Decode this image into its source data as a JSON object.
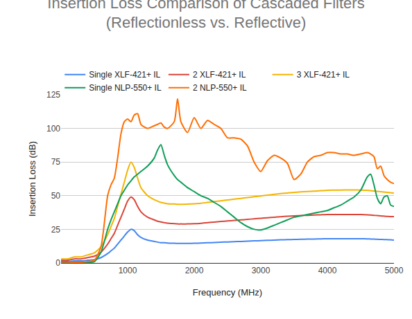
{
  "chart_data": {
    "type": "line",
    "title": "Insertion Loss Comparison of Cascaded Filters\n(Reflectionless vs. Reflective)",
    "x_label": "Frequency (MHz)",
    "y_label": "Insertion Loss (dB)",
    "x": [
      0,
      100,
      200,
      300,
      400,
      500,
      600,
      700,
      750,
      800,
      850,
      900,
      950,
      1000,
      1050,
      1100,
      1150,
      1200,
      1300,
      1400,
      1450,
      1500,
      1550,
      1600,
      1700,
      1750,
      1800,
      1900,
      2000,
      2100,
      2200,
      2300,
      2400,
      2500,
      2600,
      2700,
      2800,
      2900,
      3000,
      3100,
      3200,
      3300,
      3400,
      3500,
      3600,
      3700,
      3800,
      3900,
      4000,
      4100,
      4200,
      4300,
      4400,
      4500,
      4600,
      4650,
      4700,
      4750,
      4800,
      4850,
      4900,
      4950,
      5000
    ],
    "series": [
      {
        "name": "Single XLF-421+ IL",
        "color": "#4285F4",
        "values": [
          1,
          1,
          1.5,
          1.5,
          2,
          2.5,
          4,
          7,
          9,
          11,
          14,
          17,
          20,
          23,
          25,
          24,
          21,
          19,
          17,
          16,
          15.5,
          15,
          15,
          14.8,
          14.6,
          14.5,
          14.5,
          14.5,
          14.6,
          14.8,
          15,
          15.2,
          15.4,
          15.6,
          15.8,
          16,
          16.2,
          16.4,
          16.6,
          16.8,
          17,
          17.2,
          17.3,
          17.5,
          17.6,
          17.7,
          17.8,
          17.9,
          18,
          18,
          18,
          18,
          18,
          18,
          17.9,
          17.8,
          17.7,
          17.6,
          17.5,
          17.4,
          17.3,
          17.2,
          17
        ]
      },
      {
        "name": "2 XLF-421+ IL",
        "color": "#DB4437",
        "values": [
          2,
          2,
          3,
          3,
          4,
          5,
          8,
          14,
          18,
          22,
          28,
          34,
          40,
          46,
          49,
          47,
          42,
          38,
          34,
          32,
          31,
          30.5,
          30,
          29.6,
          29.2,
          29,
          29,
          29,
          29.2,
          29.5,
          30,
          30.4,
          30.8,
          31.2,
          31.6,
          32,
          32.4,
          32.8,
          33.2,
          33.6,
          34,
          34.4,
          34.7,
          35,
          35.2,
          35.4,
          35.6,
          35.8,
          36,
          36,
          36,
          36,
          36,
          36,
          35.8,
          35.6,
          35.4,
          35.2,
          35,
          34.8,
          34.6,
          34.5,
          34.5
        ]
      },
      {
        "name": "3 XLF-421+ IL",
        "color": "#F4B400",
        "values": [
          3,
          3,
          4.5,
          4.5,
          6,
          7.5,
          12,
          21,
          27,
          33,
          42,
          51,
          60,
          69,
          75,
          71,
          63,
          56,
          50,
          47,
          46,
          45,
          44.5,
          44,
          43.8,
          43.6,
          43.6,
          43.7,
          44,
          44.4,
          45,
          45.6,
          46.2,
          46.8,
          47.4,
          48,
          48.6,
          49.2,
          49.8,
          50.4,
          51,
          51.6,
          52,
          52.5,
          52.8,
          53.1,
          53.4,
          53.7,
          54,
          54.1,
          54.2,
          54.3,
          54.3,
          54.2,
          54,
          53.8,
          53.5,
          53.2,
          53,
          52.7,
          52.5,
          52.2,
          52
        ]
      },
      {
        "name": "Single NLP-550+ IL",
        "color": "#0F9D58",
        "values": [
          0.3,
          0.3,
          0.3,
          0.3,
          0.5,
          1,
          8,
          25,
          32,
          38,
          44,
          50,
          54,
          58,
          61,
          64,
          66,
          68,
          72,
          78,
          84,
          88,
          80,
          73,
          65,
          62,
          60,
          56,
          53,
          50,
          48,
          45,
          42,
          38,
          34,
          30,
          27,
          25,
          24.5,
          26,
          28,
          30,
          32,
          34,
          35,
          36,
          37,
          38,
          39,
          41,
          43,
          46,
          49,
          54,
          64,
          66,
          58,
          48,
          44,
          49,
          50,
          43,
          42
        ]
      },
      {
        "name": "2 NLP-550+ IL",
        "color": "#FF6D01",
        "values": [
          0,
          0,
          0.5,
          0.5,
          1,
          2,
          12,
          50,
          58,
          63,
          78,
          96,
          105,
          107,
          105,
          110,
          111,
          103,
          100,
          102,
          103,
          104,
          101,
          100,
          105,
          122,
          105,
          97,
          108,
          100,
          106,
          103,
          100,
          93,
          93,
          92,
          87,
          75,
          68,
          76,
          80,
          78,
          74,
          62,
          66,
          75,
          79,
          80,
          82,
          82,
          81,
          81,
          80,
          81,
          82,
          81,
          79,
          70,
          72,
          65,
          62,
          60,
          59
        ]
      }
    ],
    "xlim": [
      0,
      5000
    ],
    "xticks": [
      1000,
      2000,
      3000,
      4000,
      5000
    ],
    "ylim": [
      0,
      125
    ],
    "yticks": [
      0,
      25,
      50,
      75,
      100,
      125
    ],
    "grid": true,
    "legend": "top"
  }
}
